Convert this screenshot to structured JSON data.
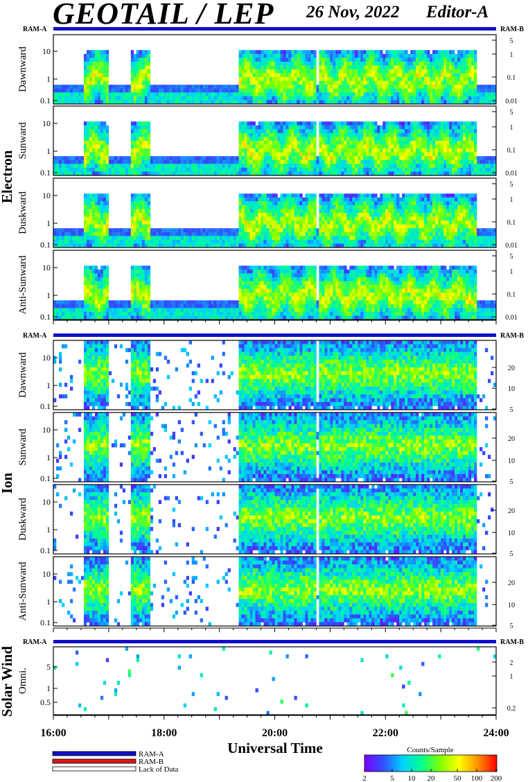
{
  "header": {
    "title": "GEOTAIL / LEP",
    "date": "26 Nov, 2022",
    "editor": "Editor-A"
  },
  "chart_data": {
    "type": "heatmap",
    "xlabel": "Universal Time",
    "x_ticks": [
      "16:00",
      "18:00",
      "20:00",
      "22:00",
      "24:00"
    ],
    "xlim": [
      "16:00",
      "24:00"
    ],
    "groups": [
      {
        "name": "Electron",
        "ram_left": "RAM-A",
        "ram_right": "RAM-B",
        "panels": [
          {
            "name": "Dawnward",
            "yticks_left": [
              "10",
              "1",
              "0.1"
            ],
            "yticks_right": [
              "5",
              "1",
              "0.1",
              "0.01"
            ]
          },
          {
            "name": "Sunward",
            "yticks_left": [
              "10",
              "1",
              "0.1"
            ],
            "yticks_right": [
              "5",
              "1",
              "0.1",
              "0.01"
            ]
          },
          {
            "name": "Duskward",
            "yticks_left": [
              "10",
              "1",
              "0.1"
            ],
            "yticks_right": [
              "5",
              "1",
              "0.1",
              "0.01"
            ]
          },
          {
            "name": "Anti-Sunward",
            "yticks_left": [
              "10",
              "1",
              "0.1"
            ],
            "yticks_right": [
              "5",
              "1",
              "0.1",
              "0.01"
            ]
          }
        ]
      },
      {
        "name": "Ion",
        "ram_left": "RAM-A",
        "ram_right": "RAM-B",
        "panels": [
          {
            "name": "Dawnward",
            "yticks_left": [
              "10",
              "1",
              "0.1"
            ],
            "yticks_right": [
              "20",
              "10",
              "5"
            ]
          },
          {
            "name": "Sunward",
            "yticks_left": [
              "10",
              "1",
              "0.1"
            ],
            "yticks_right": [
              "20",
              "10",
              "5"
            ]
          },
          {
            "name": "Duskward",
            "yticks_left": [
              "10",
              "1",
              "0.1"
            ],
            "yticks_right": [
              "20",
              "10",
              "5"
            ]
          },
          {
            "name": "Anti-Sunward",
            "yticks_left": [
              "10",
              "1",
              "0.1"
            ],
            "yticks_right": [
              "20",
              "10",
              "5"
            ]
          }
        ]
      },
      {
        "name": "Solar Wind",
        "ram_left": "RAM-A",
        "ram_right": "RAM-B",
        "panels": [
          {
            "name": "Omni.",
            "yticks_left": [
              "5",
              "1",
              "0.5"
            ],
            "yticks_right": [
              "2",
              "1",
              "0.2"
            ]
          }
        ]
      }
    ],
    "legend": {
      "items": [
        "RAM-A",
        "RAM-B",
        "Lack of Data"
      ],
      "colors": [
        "#1010c8",
        "#d81818",
        "#ffffff"
      ]
    },
    "colorbar": {
      "title": "Counts/Sample",
      "ticks": [
        "2",
        "5",
        "10",
        "20",
        "50",
        "100",
        "200"
      ],
      "stops": [
        "#7a00ff",
        "#3050ff",
        "#00d0ff",
        "#00ff90",
        "#80ff00",
        "#ffff00",
        "#ff9000",
        "#ff0000"
      ]
    }
  }
}
